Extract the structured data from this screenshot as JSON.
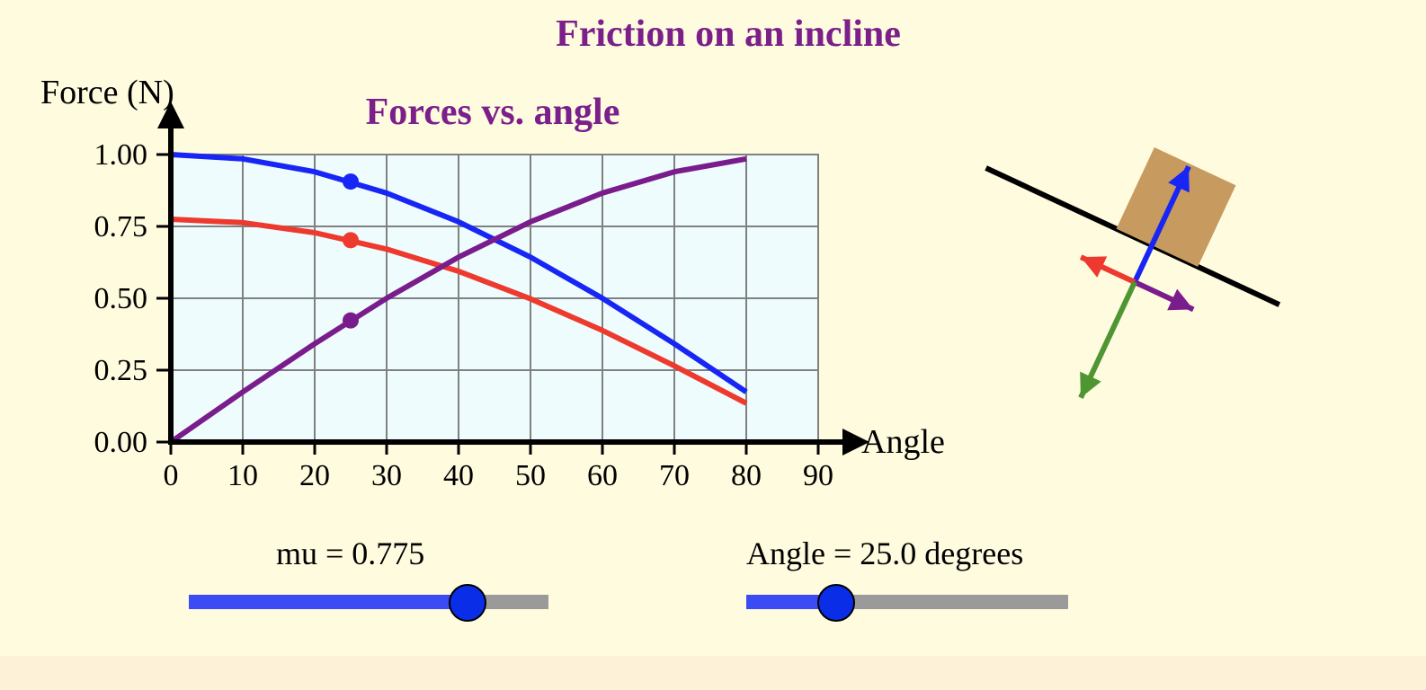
{
  "title": "Friction on an incline",
  "chart_data": {
    "type": "line",
    "title": "Forces vs. angle",
    "ylabel": "Force (N)",
    "xlabel": "Angle",
    "xlim": [
      0,
      90
    ],
    "ylim": [
      0,
      1
    ],
    "xticks": [
      "0",
      "10",
      "20",
      "30",
      "40",
      "50",
      "60",
      "70",
      "80",
      "90"
    ],
    "yticks": [
      "0.00",
      "0.25",
      "0.50",
      "0.75",
      "1.00"
    ],
    "grid": true,
    "series": [
      {
        "color": "#1726f5",
        "x": [
          0,
          10,
          20,
          30,
          40,
          50,
          60,
          70,
          80
        ],
        "values": [
          1.0,
          0.985,
          0.94,
          0.866,
          0.766,
          0.643,
          0.5,
          0.342,
          0.174
        ]
      },
      {
        "color": "#ee3a2e",
        "x": [
          0,
          10,
          20,
          30,
          40,
          50,
          60,
          70,
          80
        ],
        "values": [
          0.775,
          0.763,
          0.728,
          0.671,
          0.594,
          0.498,
          0.388,
          0.265,
          0.135
        ]
      },
      {
        "color": "#7a1d8c",
        "x": [
          0,
          10,
          20,
          30,
          40,
          50,
          60,
          70,
          80
        ],
        "values": [
          0.0,
          0.174,
          0.342,
          0.5,
          0.643,
          0.766,
          0.866,
          0.94,
          0.985
        ]
      }
    ],
    "markers": {
      "x": 25,
      "values": [
        0.906,
        0.702,
        0.423
      ]
    }
  },
  "controls": {
    "mu": {
      "label": "mu = 0.775",
      "value": 0.775,
      "fraction": 0.775
    },
    "angle": {
      "label": "Angle = 25.0 degrees",
      "value": 25.0,
      "fraction": 0.278
    }
  },
  "diagram": {
    "incline_angle": 25,
    "block_color": "#c79a5f",
    "vectors": [
      {
        "name": "normal",
        "color": "#1726f5"
      },
      {
        "name": "friction",
        "color": "#ee3a2e"
      },
      {
        "name": "parallel",
        "color": "#7a1d8c"
      },
      {
        "name": "gravity",
        "color": "#4f9632"
      }
    ]
  }
}
